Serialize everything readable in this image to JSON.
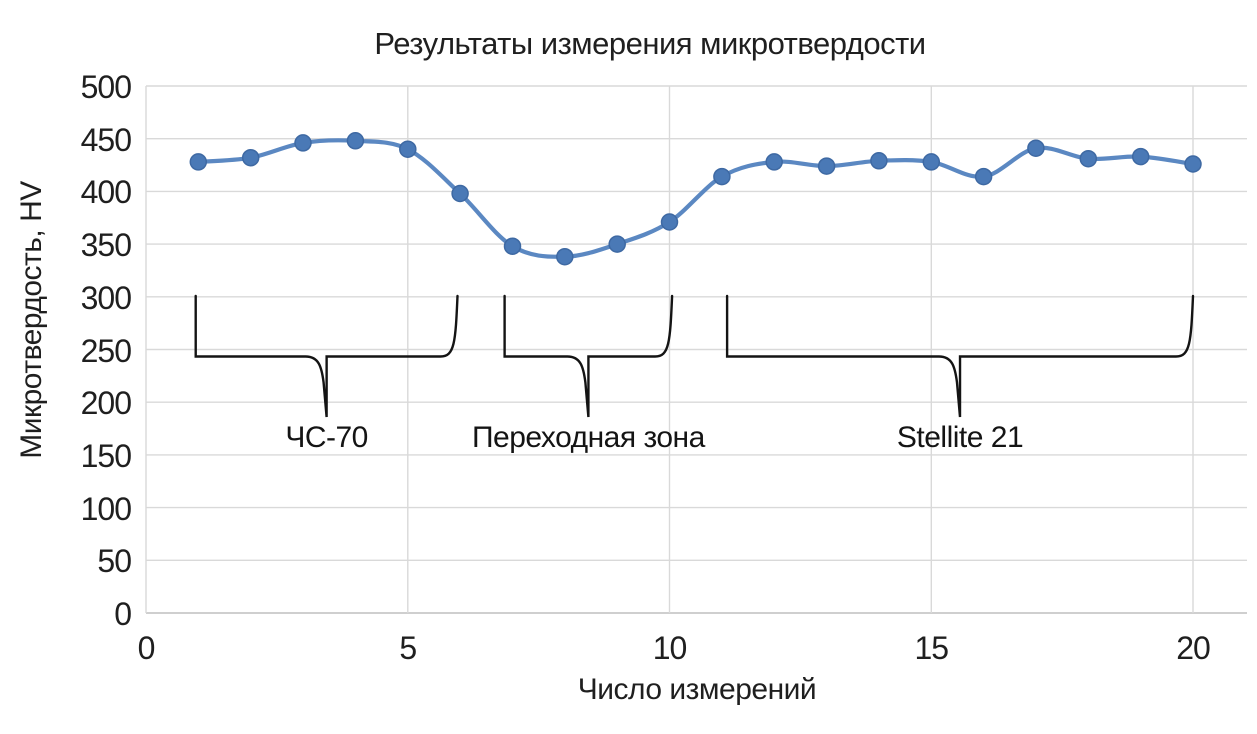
{
  "chart_data": {
    "type": "line",
    "title": "Результаты измерения микротвердости",
    "xlabel": "Число измерений",
    "ylabel": "Микротвердость, HV",
    "x": [
      1,
      2,
      3,
      4,
      5,
      6,
      7,
      8,
      9,
      10,
      11,
      12,
      13,
      14,
      15,
      16,
      17,
      18,
      19,
      20
    ],
    "series": [
      {
        "name": "Микротвердость, HV",
        "values": [
          428,
          432,
          446,
          448,
          440,
          398,
          348,
          338,
          350,
          371,
          414,
          428,
          424,
          429,
          428,
          414,
          441,
          431,
          433,
          426
        ]
      }
    ],
    "xlim": [
      0,
      20
    ],
    "ylim": [
      0,
      500
    ],
    "x_ticks": [
      0,
      5,
      10,
      15,
      20
    ],
    "y_ticks": [
      0,
      50,
      100,
      150,
      200,
      250,
      300,
      350,
      400,
      450,
      500
    ],
    "grid": true,
    "legend": false,
    "line_smooth": true,
    "annotations": [
      {
        "label": "ЧС-70",
        "from_x": 0.95,
        "to_x": 5.95
      },
      {
        "label": "Переходная зона",
        "from_x": 6.85,
        "to_x": 10.05
      },
      {
        "label": "Stellite 21",
        "from_x": 11.1,
        "to_x": 20.0
      }
    ],
    "colors": {
      "line": "#5b88c2",
      "marker": "#4a79b6",
      "marker_edge": "#3e69a3",
      "gridline": "#d9d9d9",
      "axis_line": "#bfbfbf",
      "text": "#1f1f1f",
      "brace": "#141414",
      "background": "#ffffff"
    }
  }
}
